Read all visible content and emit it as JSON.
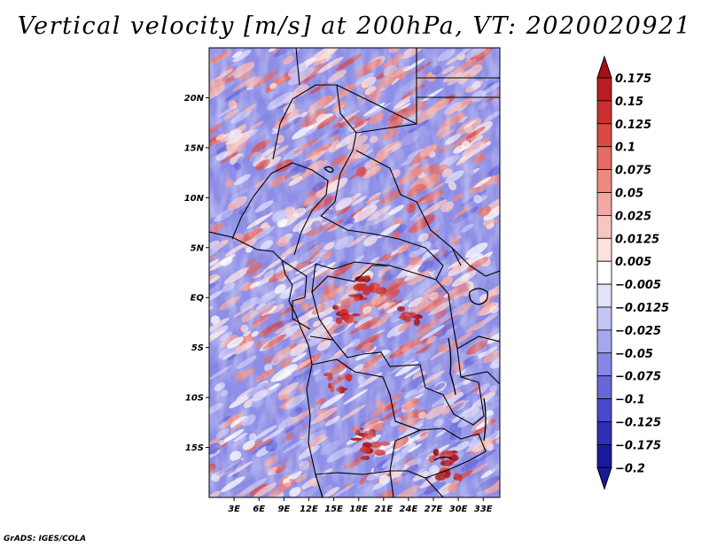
{
  "title": "Vertical velocity [m/s] at 200hPa, VT: 2020020921",
  "credit": "GrADS: IGES/COLA",
  "map": {
    "lon_range": [
      0,
      35
    ],
    "lat_range": [
      -20,
      25
    ],
    "lat_ticks": [
      {
        "value": 20,
        "label": "20N"
      },
      {
        "value": 15,
        "label": "15N"
      },
      {
        "value": 10,
        "label": "10N"
      },
      {
        "value": 5,
        "label": "5N"
      },
      {
        "value": 0,
        "label": "EQ"
      },
      {
        "value": -5,
        "label": "5S"
      },
      {
        "value": -10,
        "label": "10S"
      },
      {
        "value": -15,
        "label": "15S"
      }
    ],
    "lon_ticks": [
      {
        "value": 3,
        "label": "3E"
      },
      {
        "value": 6,
        "label": "6E"
      },
      {
        "value": 9,
        "label": "9E"
      },
      {
        "value": 12,
        "label": "12E"
      },
      {
        "value": 15,
        "label": "15E"
      },
      {
        "value": 18,
        "label": "18E"
      },
      {
        "value": 21,
        "label": "21E"
      },
      {
        "value": 24,
        "label": "24E"
      },
      {
        "value": 27,
        "label": "27E"
      },
      {
        "value": 30,
        "label": "30E"
      },
      {
        "value": 33,
        "label": "33E"
      }
    ]
  },
  "colorbar": {
    "levels": [
      {
        "label": "0.175",
        "color": "#a50f15"
      },
      {
        "label": "0.15",
        "color": "#b81d22"
      },
      {
        "label": "0.125",
        "color": "#cb2f2f"
      },
      {
        "label": "0.1",
        "color": "#da4a45"
      },
      {
        "label": "0.075",
        "color": "#e46a62"
      },
      {
        "label": "0.05",
        "color": "#ec8a82"
      },
      {
        "label": "0.025",
        "color": "#f3a8a2"
      },
      {
        "label": "0.0125",
        "color": "#f8c6c1"
      },
      {
        "label": "0.005",
        "color": "#fce3e0"
      },
      {
        "label": "-0.005",
        "color": "#ffffff"
      },
      {
        "label": "-0.0125",
        "color": "#e2e2fb"
      },
      {
        "label": "-0.025",
        "color": "#c4c4f5"
      },
      {
        "label": "-0.05",
        "color": "#a6a6ee"
      },
      {
        "label": "-0.075",
        "color": "#8686e4"
      },
      {
        "label": "-0.1",
        "color": "#6767d8"
      },
      {
        "label": "-0.125",
        "color": "#4a4ac8"
      },
      {
        "label": "-0.175",
        "color": "#2f2fb3"
      },
      {
        "label": "-0.2",
        "color": "#1a1a99"
      }
    ],
    "top_color": "#a50f15",
    "bottom_color": "#1a1a99"
  }
}
